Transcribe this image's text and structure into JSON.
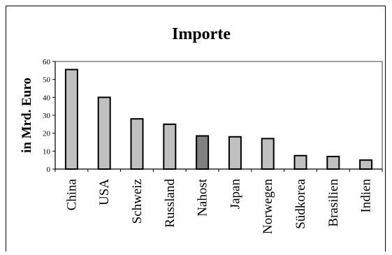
{
  "chart_data": {
    "type": "bar",
    "title": "Importe",
    "xlabel": "",
    "ylabel": "in Mrd. Euro",
    "ylim": [
      0,
      60
    ],
    "yticks": [
      0,
      10,
      20,
      30,
      40,
      50,
      60
    ],
    "grid": false,
    "categories": [
      "China",
      "USA",
      "Schweiz",
      "Russland",
      "Nahost",
      "Japan",
      "Norwegen",
      "Südkorea",
      "Brasilien",
      "Indien"
    ],
    "values": [
      55.5,
      40,
      28,
      25,
      18.5,
      18,
      17,
      7.5,
      7,
      5
    ],
    "bar_colors": [
      "#c0c0c0",
      "#c0c0c0",
      "#c0c0c0",
      "#c0c0c0",
      "#808080",
      "#c0c0c0",
      "#c0c0c0",
      "#c0c0c0",
      "#c0c0c0",
      "#c0c0c0"
    ]
  }
}
